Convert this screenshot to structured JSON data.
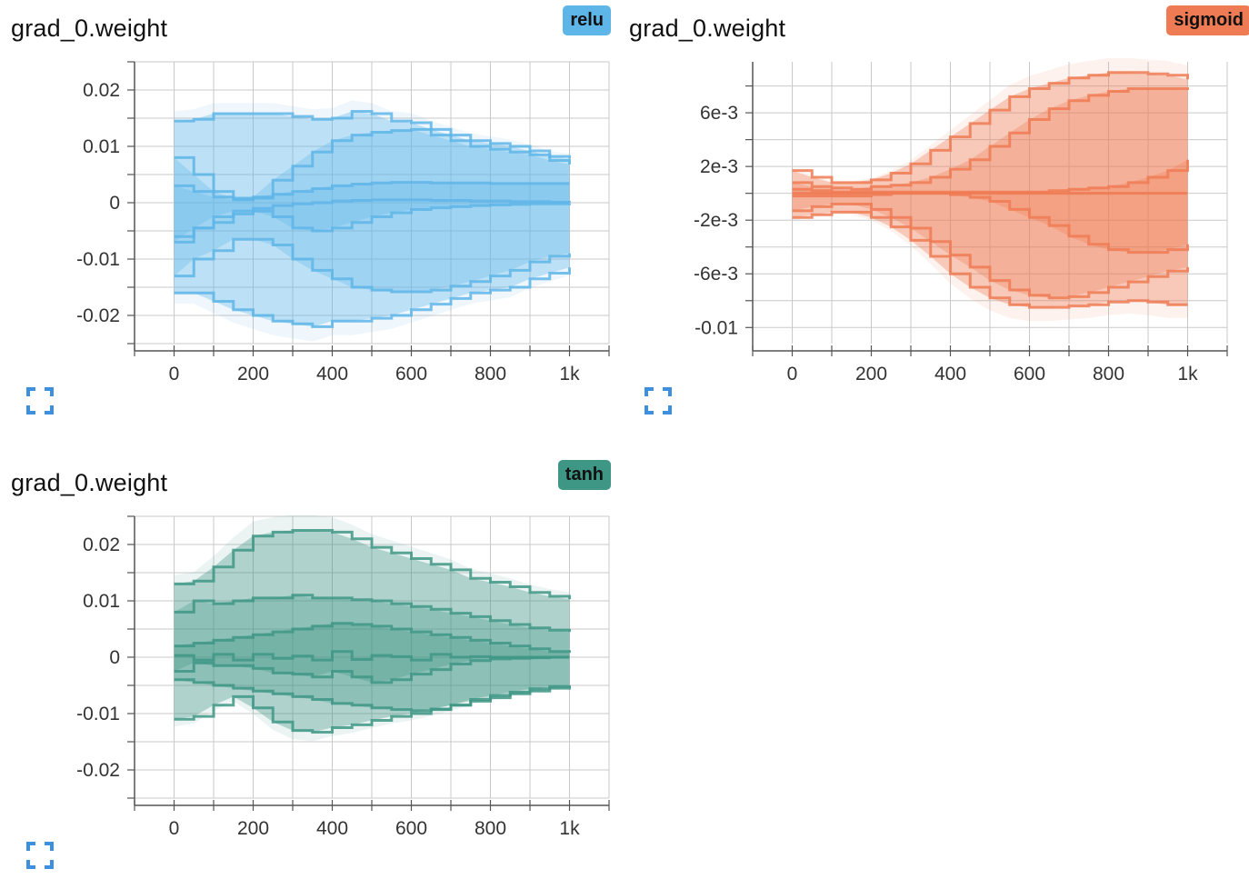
{
  "cards": [
    {
      "title": "grad_0.weight",
      "run": "relu",
      "color": "#5eb5e8",
      "badge_color": "#5eb5e8",
      "expand_icon": "fullscreen-icon",
      "chart_data": {
        "type": "area",
        "kind": "distribution",
        "x": [
          0,
          50,
          100,
          150,
          200,
          250,
          300,
          350,
          400,
          450,
          500,
          550,
          600,
          650,
          700,
          750,
          800,
          850,
          900,
          950,
          1000
        ],
        "xlim": [
          -100,
          1100
        ],
        "ylim": [
          -0.025,
          0.025
        ],
        "xticks": [
          0,
          200,
          400,
          600,
          800,
          1000
        ],
        "xtick_labels": [
          "0",
          "200",
          "400",
          "600",
          "800",
          "1k"
        ],
        "yticks": [
          0.02,
          0.01,
          0,
          -0.01,
          -0.02
        ],
        "ytick_labels": [
          "0.02",
          "0.01",
          "0",
          "-0.01",
          "-0.02"
        ],
        "percentiles": [
          {
            "name": "max",
            "values": [
              0.0145,
              0.0148,
              0.0158,
              0.0158,
              0.0158,
              0.0158,
              0.0153,
              0.0148,
              0.015,
              0.0162,
              0.0158,
              0.0145,
              0.0142,
              0.013,
              0.012,
              0.011,
              0.0105,
              0.01,
              0.0092,
              0.0082,
              0.0078
            ]
          },
          {
            "name": "p93",
            "values": [
              0.008,
              0.005,
              0.002,
              0.0008,
              0.001,
              0.004,
              0.0065,
              0.009,
              0.011,
              0.012,
              0.0125,
              0.0128,
              0.013,
              0.012,
              0.011,
              0.01,
              0.0095,
              0.009,
              0.0085,
              0.0075,
              0.0068
            ]
          },
          {
            "name": "p84",
            "values": [
              0.003,
              0.002,
              0.001,
              0.0005,
              0.0008,
              0.0015,
              0.002,
              0.0025,
              0.003,
              0.0033,
              0.0035,
              0.0036,
              0.0036,
              0.0035,
              0.0035,
              0.0035,
              0.0034,
              0.0034,
              0.0034,
              0.0034,
              0.0034
            ]
          },
          {
            "name": "p50",
            "values": [
              -0.006,
              -0.0045,
              -0.0035,
              -0.002,
              -0.001,
              -0.0005,
              -0.0002,
              0.0,
              0.0003,
              0.0004,
              0.0005,
              0.0005,
              0.0005,
              0.0004,
              0.0004,
              0.0003,
              0.0003,
              0.0002,
              0.0002,
              0.0001,
              0.0
            ]
          },
          {
            "name": "p16",
            "values": [
              -0.007,
              -0.0045,
              -0.0025,
              -0.0015,
              -0.0015,
              -0.0025,
              -0.0045,
              -0.005,
              -0.0045,
              -0.0035,
              -0.0025,
              -0.0018,
              -0.0012,
              -0.0009,
              -0.0007,
              -0.0005,
              -0.0004,
              -0.0003,
              -0.0002,
              -0.0002,
              -0.0001
            ]
          },
          {
            "name": "p7",
            "values": [
              -0.013,
              -0.01,
              -0.0085,
              -0.0065,
              -0.0065,
              -0.0075,
              -0.01,
              -0.012,
              -0.0135,
              -0.015,
              -0.0155,
              -0.0158,
              -0.0158,
              -0.0155,
              -0.0148,
              -0.014,
              -0.013,
              -0.012,
              -0.0105,
              -0.0095,
              -0.009
            ]
          },
          {
            "name": "min",
            "values": [
              -0.016,
              -0.016,
              -0.0175,
              -0.019,
              -0.02,
              -0.021,
              -0.0215,
              -0.022,
              -0.021,
              -0.021,
              -0.0205,
              -0.02,
              -0.019,
              -0.018,
              -0.017,
              -0.016,
              -0.0155,
              -0.015,
              -0.0135,
              -0.0125,
              -0.0115
            ]
          }
        ]
      }
    },
    {
      "title": "grad_0.weight",
      "run": "sigmoid",
      "color": "#ee7b54",
      "badge_color": "#ee7b54",
      "expand_icon": "fullscreen-icon",
      "chart_data": {
        "type": "area",
        "kind": "distribution",
        "x": [
          0,
          50,
          100,
          150,
          200,
          250,
          300,
          350,
          400,
          450,
          500,
          550,
          600,
          650,
          700,
          750,
          800,
          850,
          900,
          950,
          1000
        ],
        "xlim": [
          -100,
          1100
        ],
        "ylim": [
          -0.0112,
          0.0098
        ],
        "xticks": [
          0,
          200,
          400,
          600,
          800,
          1000
        ],
        "xtick_labels": [
          "0",
          "200",
          "400",
          "600",
          "800",
          "1k"
        ],
        "yticks": [
          0.006,
          0.002,
          -0.002,
          -0.006,
          -0.01
        ],
        "ytick_labels": [
          "6e-3",
          "2e-3",
          "-2e-3",
          "-6e-3",
          "-0.01"
        ],
        "percentiles": [
          {
            "name": "max",
            "values": [
              0.0017,
              0.0012,
              0.0008,
              0.0008,
              0.001,
              0.0015,
              0.0022,
              0.0032,
              0.0042,
              0.0052,
              0.0062,
              0.0072,
              0.0078,
              0.0082,
              0.0086,
              0.0088,
              0.009,
              0.009,
              0.0089,
              0.0088,
              0.0085
            ]
          },
          {
            "name": "p93",
            "values": [
              0.0008,
              0.0005,
              0.0004,
              0.0003,
              0.0005,
              0.0006,
              0.0008,
              0.0012,
              0.0018,
              0.0025,
              0.0035,
              0.0045,
              0.0055,
              0.0063,
              0.0069,
              0.0073,
              0.0076,
              0.0078,
              0.0078,
              0.0078,
              0.0077
            ]
          },
          {
            "name": "p84",
            "values": [
              0.0003,
              0.0002,
              0.0001,
              0.0001,
              0.0001,
              0.0001,
              0.0001,
              0.0001,
              0.0001,
              0.0001,
              0.0001,
              0.0001,
              0.0001,
              0.0002,
              0.0003,
              0.0004,
              0.0005,
              0.0008,
              0.0012,
              0.0017,
              0.0025
            ]
          },
          {
            "name": "p50",
            "values": [
              0.0,
              0.0,
              0.0,
              0.0,
              0.0,
              0.0,
              0.0,
              0.0,
              0.0,
              0.0,
              0.0,
              0.0,
              0.0,
              0.0,
              0.0,
              0.0,
              0.0,
              0.0,
              0.0,
              0.0,
              0.0
            ]
          },
          {
            "name": "p16",
            "values": [
              -0.0002,
              -0.0002,
              -0.0002,
              -0.0002,
              -0.0001,
              0.0,
              0.0,
              0.0,
              -0.0001,
              -0.0003,
              -0.0006,
              -0.0012,
              -0.0018,
              -0.0024,
              -0.0032,
              -0.0038,
              -0.0042,
              -0.0044,
              -0.0044,
              -0.0042,
              -0.0038
            ]
          },
          {
            "name": "p7",
            "values": [
              -0.0013,
              -0.001,
              -0.0008,
              -0.0008,
              -0.0012,
              -0.0018,
              -0.0026,
              -0.0036,
              -0.0046,
              -0.0055,
              -0.0065,
              -0.0072,
              -0.0076,
              -0.0078,
              -0.0077,
              -0.0074,
              -0.007,
              -0.0066,
              -0.0062,
              -0.0058,
              -0.0055
            ]
          },
          {
            "name": "min",
            "values": [
              -0.0018,
              -0.0016,
              -0.0014,
              -0.0014,
              -0.0018,
              -0.0025,
              -0.0035,
              -0.0047,
              -0.006,
              -0.007,
              -0.0078,
              -0.0083,
              -0.0085,
              -0.0085,
              -0.0084,
              -0.0083,
              -0.0081,
              -0.008,
              -0.0081,
              -0.0083,
              -0.0083
            ]
          }
        ]
      }
    },
    {
      "title": "grad_0.weight",
      "run": "tanh",
      "color": "#3e9685",
      "badge_color": "#3e9685",
      "expand_icon": "fullscreen-icon",
      "chart_data": {
        "type": "area",
        "kind": "distribution",
        "x": [
          0,
          50,
          100,
          150,
          200,
          250,
          300,
          350,
          400,
          450,
          500,
          550,
          600,
          650,
          700,
          750,
          800,
          850,
          900,
          950,
          1000
        ],
        "xlim": [
          -100,
          1100
        ],
        "ylim": [
          -0.025,
          0.025
        ],
        "xticks": [
          0,
          200,
          400,
          600,
          800,
          1000
        ],
        "xtick_labels": [
          "0",
          "200",
          "400",
          "600",
          "800",
          "1k"
        ],
        "yticks": [
          0.02,
          0.01,
          0,
          -0.01,
          -0.02
        ],
        "ytick_labels": [
          "0.02",
          "0.01",
          "0",
          "-0.01",
          "-0.02"
        ],
        "percentiles": [
          {
            "name": "max",
            "values": [
              0.013,
              0.0135,
              0.016,
              0.019,
              0.0215,
              0.0222,
              0.0225,
              0.0225,
              0.0222,
              0.021,
              0.0195,
              0.0185,
              0.0175,
              0.0165,
              0.0155,
              0.014,
              0.0133,
              0.0125,
              0.0115,
              0.0108,
              0.0103
            ]
          },
          {
            "name": "p93",
            "values": [
              0.008,
              0.01,
              0.0095,
              0.01,
              0.0105,
              0.0105,
              0.011,
              0.0105,
              0.0105,
              0.0102,
              0.01,
              0.0095,
              0.009,
              0.0085,
              0.0078,
              0.0072,
              0.0065,
              0.0058,
              0.0052,
              0.0048,
              0.0045
            ]
          },
          {
            "name": "p84",
            "values": [
              0.002,
              0.0025,
              0.003,
              0.0035,
              0.004,
              0.0045,
              0.005,
              0.0055,
              0.006,
              0.0058,
              0.0055,
              0.005,
              0.0045,
              0.004,
              0.0035,
              0.003,
              0.0025,
              0.002,
              0.0015,
              0.001,
              0.0008
            ]
          },
          {
            "name": "p50",
            "values": [
              0.0003,
              -0.0005,
              0.0005,
              -0.0005,
              0.0005,
              -0.0002,
              0.0002,
              -0.0005,
              0.001,
              -0.0004,
              0.0003,
              0.0001,
              -0.0005,
              0.0005,
              0.0,
              0.0001,
              0.0,
              0.0,
              0.0,
              0.0,
              0.0
            ]
          },
          {
            "name": "p16",
            "values": [
              -0.0025,
              -0.001,
              -0.0015,
              -0.0015,
              -0.002,
              -0.0028,
              -0.003,
              -0.0035,
              -0.0025,
              -0.0035,
              -0.0045,
              -0.004,
              -0.003,
              -0.0022,
              -0.0012,
              -0.0006,
              -0.0003,
              -0.0002,
              -0.0001,
              0.0,
              0.0
            ]
          },
          {
            "name": "p7",
            "values": [
              -0.004,
              -0.0045,
              -0.005,
              -0.0055,
              -0.006,
              -0.0065,
              -0.007,
              -0.0075,
              -0.0082,
              -0.0085,
              -0.009,
              -0.0093,
              -0.0095,
              -0.0092,
              -0.0085,
              -0.0078,
              -0.0072,
              -0.0065,
              -0.006,
              -0.0055,
              -0.0052
            ]
          },
          {
            "name": "min",
            "values": [
              -0.011,
              -0.0105,
              -0.0085,
              -0.007,
              -0.009,
              -0.0115,
              -0.013,
              -0.0133,
              -0.0125,
              -0.012,
              -0.0112,
              -0.0105,
              -0.01,
              -0.0093,
              -0.0085,
              -0.0075,
              -0.0068,
              -0.0062,
              -0.0056,
              -0.0052,
              -0.005
            ]
          }
        ]
      }
    }
  ]
}
